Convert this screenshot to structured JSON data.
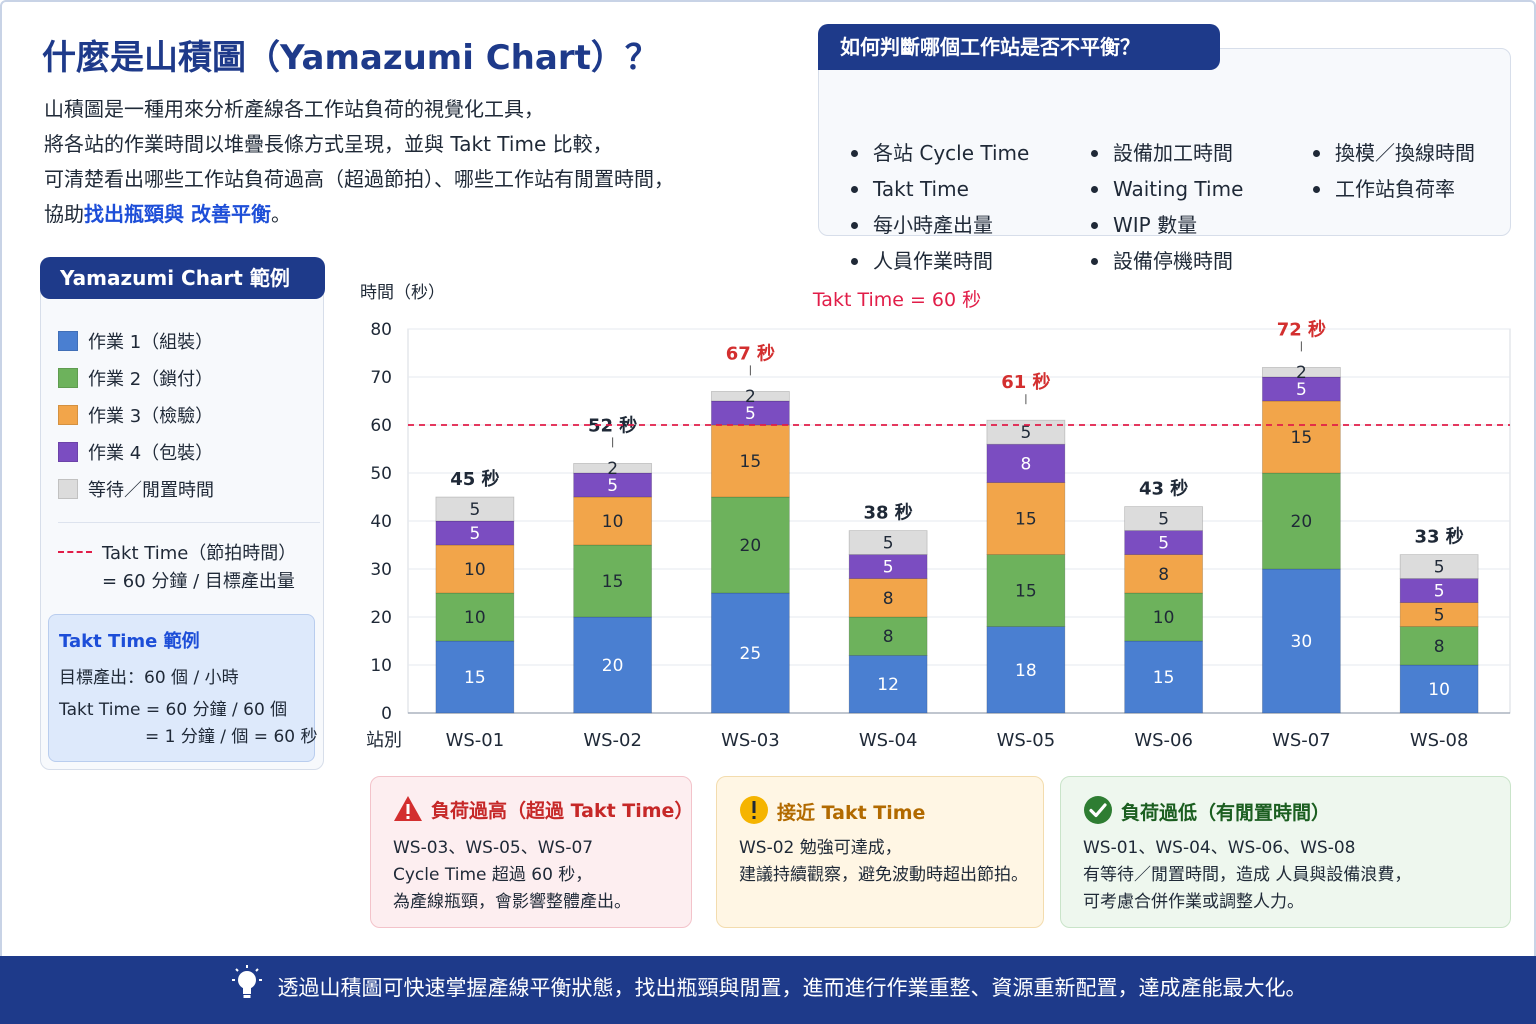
{
  "header": {
    "title": "什麼是山積圖（Yamazumi Chart）？",
    "intro_lines": [
      "山積圖是一種用來分析產線各工作站負荷的視覺化工具，",
      "將各站的作業時間以堆疊長條方式呈現，並與 Takt Time 比較，",
      "可清楚看出哪些工作站負荷過高（超過節拍）、哪些工作站有閒置時間，"
    ],
    "intro_last_prefix": "協助",
    "intro_last_highlight": "找出瓶頸與 改善平衡",
    "intro_last_suffix": "。"
  },
  "criteria": {
    "title": "如何判斷哪個工作站是否不平衡？",
    "col1": [
      "各站 Cycle Time",
      "Takt Time",
      "每小時產出量",
      "人員作業時間"
    ],
    "col2": [
      "設備加工時間",
      "Waiting Time",
      "WIP 數量",
      "設備停機時間"
    ],
    "col3": [
      "換模／換線時間",
      "工作站負荷率"
    ]
  },
  "legend": {
    "title": "Yamazumi Chart 範例",
    "items": [
      {
        "label": "作業 1（組裝）",
        "color": "#4a7fd1"
      },
      {
        "label": "作業 2（鎖付）",
        "color": "#6db25c"
      },
      {
        "label": "作業 3（檢驗）",
        "color": "#f2a54a"
      },
      {
        "label": "作業 4（包裝）",
        "color": "#7b4dc1"
      },
      {
        "label": "等待／閒置時間",
        "color": "#dcdcdc"
      }
    ],
    "takt_line1": "Takt Time（節拍時間）",
    "takt_line2": "= 60 分鐘 / 目標產出量",
    "example_title": "Takt Time 範例",
    "example_line1": "目標產出：60 個 / 小時",
    "example_line2": "Takt Time = 60 分鐘 / 60 個",
    "example_line3": "= 1 分鐘 / 個 = 60 秒"
  },
  "chart_data": {
    "type": "bar",
    "stacked": true,
    "ylabel": "時間（秒）",
    "xlabel": "站別",
    "ylim": [
      0,
      80
    ],
    "yticks": [
      0,
      10,
      20,
      30,
      40,
      50,
      60,
      70,
      80
    ],
    "categories": [
      "WS-01",
      "WS-02",
      "WS-03",
      "WS-04",
      "WS-05",
      "WS-06",
      "WS-07",
      "WS-08"
    ],
    "series": [
      {
        "name": "作業 1（組裝）",
        "color": "#4a7fd1",
        "values": [
          15,
          20,
          25,
          12,
          18,
          15,
          30,
          10
        ]
      },
      {
        "name": "作業 2（鎖付）",
        "color": "#6db25c",
        "values": [
          10,
          15,
          20,
          8,
          15,
          10,
          20,
          8
        ]
      },
      {
        "name": "作業 3（檢驗）",
        "color": "#f2a54a",
        "values": [
          10,
          10,
          15,
          8,
          15,
          8,
          15,
          5
        ]
      },
      {
        "name": "作業 4（包裝）",
        "color": "#7b4dc1",
        "values": [
          5,
          5,
          5,
          5,
          8,
          5,
          5,
          5
        ]
      },
      {
        "name": "等待／閒置時間",
        "color": "#dcdcdc",
        "values": [
          5,
          2,
          2,
          5,
          5,
          5,
          2,
          5
        ]
      }
    ],
    "totals": [
      "45 秒",
      "52 秒",
      "67 秒",
      "38 秒",
      "61 秒",
      "43 秒",
      "72 秒",
      "33 秒"
    ],
    "over_takt": [
      false,
      false,
      true,
      false,
      true,
      false,
      true,
      false
    ],
    "takt": {
      "value": 60,
      "label": "Takt Time = 60 秒",
      "color": "#e11d48"
    },
    "grid": true
  },
  "cards": {
    "high": {
      "title": "負荷過高（超過 Takt Time）",
      "lines": [
        "WS-03、WS-05、WS-07",
        "Cycle Time 超過 60 秒，",
        "為產線瓶頸，會影響整體產出。"
      ]
    },
    "near": {
      "title": "接近 Takt Time",
      "lines": [
        "WS-02 勉強可達成，",
        "建議持續觀察，避免波動時超出節拍。"
      ]
    },
    "low": {
      "title": "負荷過低（有閒置時間）",
      "lines": [
        "WS-01、WS-04、WS-06、WS-08",
        "有等待／閒置時間，造成 人員與設備浪費，",
        "可考慮合併作業或調整人力。"
      ]
    }
  },
  "footer": {
    "text": "透過山積圖可快速掌握產線平衡狀態，找出瓶頸與閒置，進而進行作業重整、資源重新配置，達成產能最大化。"
  },
  "colors": {
    "primary": "#1e3a8a",
    "danger": "#d32f2f",
    "warning": "#f5b400",
    "success": "#2e7d32"
  }
}
